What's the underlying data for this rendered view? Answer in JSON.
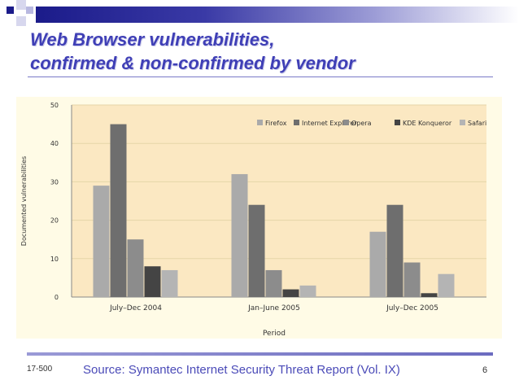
{
  "slide": {
    "title_line1": "Web Browser vulnerabilities,",
    "title_line2": "confirmed & non-confirmed by vendor",
    "footer_left": "17-500",
    "footer_source": "Source: Symantec Internet Security Threat Report (Vol. IX)",
    "page_number": "6",
    "colors": {
      "title": "#3f3fb6",
      "band_dark": "#1b1b8a",
      "source": "#4b4bb8"
    }
  },
  "chart_data": {
    "type": "bar",
    "categories": [
      "July–Dec 2004",
      "Jan–June 2005",
      "July–Dec 2005"
    ],
    "series": [
      {
        "name": "Firefox",
        "values": [
          29,
          32,
          17
        ],
        "color": "#aaaaaa"
      },
      {
        "name": "Internet Explorer",
        "values": [
          45,
          24,
          24
        ],
        "color": "#6e6e6e"
      },
      {
        "name": "Opera",
        "values": [
          15,
          7,
          9
        ],
        "color": "#8c8c8c"
      },
      {
        "name": "KDE Konqueror",
        "values": [
          8,
          2,
          1
        ],
        "color": "#444444"
      },
      {
        "name": "Safari",
        "values": [
          7,
          3,
          6
        ],
        "color": "#b4b4b4"
      }
    ],
    "title": "",
    "xlabel": "Period",
    "ylabel": "Documented vulnerabilities",
    "ylim": [
      0,
      50
    ],
    "yticks": [
      0,
      10,
      20,
      30,
      40,
      50
    ],
    "grid": true,
    "legend": "top-right",
    "plot_background": "#fbe8c2"
  }
}
